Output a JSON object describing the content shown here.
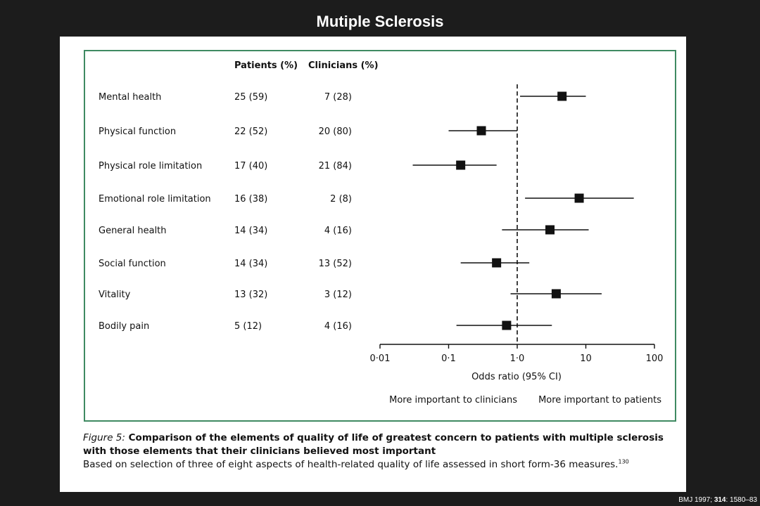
{
  "slide": {
    "title": "Mutiple Sclerosis",
    "citation": {
      "pre": "BMJ 1997; ",
      "volume": "314",
      "post": ": 1580–83"
    }
  },
  "colors": {
    "background": "#1c1c1c",
    "panel": "#ffffff",
    "box_border": "#3f8a62",
    "ink": "#111111"
  },
  "table": {
    "header_patients": "Patients (%)",
    "header_clinicians": "Clinicians (%)",
    "rows": [
      {
        "label": "Mental health",
        "patients": "25 (59)",
        "clinicians": "7 (28)"
      },
      {
        "label": "Physical function",
        "patients": "22 (52)",
        "clinicians": "20 (80)"
      },
      {
        "label": "Physical role limitation",
        "patients": "17 (40)",
        "clinicians": "21 (84)"
      },
      {
        "label": "Emotional role limitation",
        "patients": "16 (38)",
        "clinicians": "2 (8)"
      },
      {
        "label": "General health",
        "patients": "14 (34)",
        "clinicians": "4  (16)"
      },
      {
        "label": "Social function",
        "patients": "14 (34)",
        "clinicians": "13 (52)"
      },
      {
        "label": "Vitality",
        "patients": "13 (32)",
        "clinicians": "3 (12)"
      },
      {
        "label": "Bodily pain",
        "patients": "5 (12)",
        "clinicians": "4 (16)"
      }
    ]
  },
  "chart_data": {
    "type": "scatter",
    "subtype": "forest-plot",
    "xscale": "log",
    "xlim": [
      0.01,
      100
    ],
    "reference_line": 1,
    "reference_line_style": "dashed",
    "xlabel": "Odds ratio (95% CI)",
    "xtick_values": [
      0.01,
      0.1,
      1,
      10,
      100
    ],
    "xtick_labels": [
      "0·01",
      "0·1",
      "1·0",
      "10",
      "100"
    ],
    "left_direction_label": "More important to clinicians",
    "right_direction_label": "More important to patients",
    "categories": [
      "Mental health",
      "Physical function",
      "Physical role limitation",
      "Emotional role limitation",
      "General health",
      "Social function",
      "Vitality",
      "Bodily pain"
    ],
    "odds_ratio": [
      4.5,
      0.3,
      0.15,
      8,
      3,
      0.5,
      3.7,
      0.7
    ],
    "ci_lower": [
      1.1,
      0.1,
      0.03,
      1.3,
      0.6,
      0.15,
      0.8,
      0.13
    ],
    "ci_upper": [
      10,
      1.0,
      0.5,
      50,
      11,
      1.5,
      17,
      3.2
    ],
    "grid": false,
    "marker": "square"
  },
  "caption": {
    "figure_label": "Figure 5:",
    "line1_rest": " Comparison of the elements of quality of life of greatest concern to patients with multiple sclerosis",
    "line2": "with those elements that their clinicians believed most important",
    "line3": "Based on selection of three of eight aspects of health-related quality of life assessed in short form-36 measures.",
    "reference": "130"
  }
}
